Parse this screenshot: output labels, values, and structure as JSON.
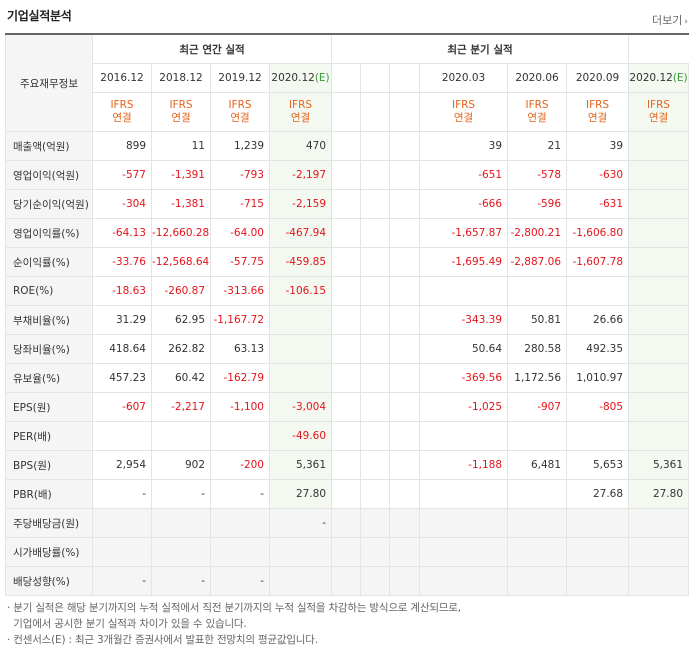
{
  "title": "기업실적분석",
  "more": "더보기",
  "header": {
    "corner": "주요재무정보",
    "annual_title": "최근 연간 실적",
    "quarter_title": "최근 분기 실적",
    "annual_periods": [
      "2016.12",
      "2018.12",
      "2019.12",
      "2020.12"
    ],
    "quarter_periods": [
      "2020.03",
      "2020.06",
      "2020.09",
      "2020.12"
    ],
    "estimate_mark": "(E)",
    "ifrs_top": "IFRS",
    "ifrs_bottom": "연결"
  },
  "rows": [
    {
      "label": "매출액(억원)",
      "a": [
        "899",
        "11",
        "1,239",
        "470"
      ],
      "q": [
        "39",
        "21",
        "39",
        ""
      ]
    },
    {
      "label": "영업이익(억원)",
      "a": [
        "-577",
        "-1,391",
        "-793",
        "-2,197"
      ],
      "q": [
        "-651",
        "-578",
        "-630",
        ""
      ]
    },
    {
      "label": "당기순이익(억원)",
      "a": [
        "-304",
        "-1,381",
        "-715",
        "-2,159"
      ],
      "q": [
        "-666",
        "-596",
        "-631",
        ""
      ]
    },
    {
      "label": "영업이익률(%)",
      "a": [
        "-64.13",
        "-12,660.28",
        "-64.00",
        "-467.94"
      ],
      "q": [
        "-1,657.87",
        "-2,800.21",
        "-1,606.80",
        ""
      ]
    },
    {
      "label": "순이익률(%)",
      "a": [
        "-33.76",
        "-12,568.64",
        "-57.75",
        "-459.85"
      ],
      "q": [
        "-1,695.49",
        "-2,887.06",
        "-1,607.78",
        ""
      ]
    },
    {
      "label": "ROE(%)",
      "a": [
        "-18.63",
        "-260.87",
        "-313.66",
        "-106.15"
      ],
      "q": [
        "",
        "",
        "",
        ""
      ]
    },
    {
      "label": "부채비율(%)",
      "a": [
        "31.29",
        "62.95",
        "-1,167.72",
        ""
      ],
      "q": [
        "-343.39",
        "50.81",
        "26.66",
        ""
      ]
    },
    {
      "label": "당좌비율(%)",
      "a": [
        "418.64",
        "262.82",
        "63.13",
        ""
      ],
      "q": [
        "50.64",
        "280.58",
        "492.35",
        ""
      ]
    },
    {
      "label": "유보율(%)",
      "a": [
        "457.23",
        "60.42",
        "-162.79",
        ""
      ],
      "q": [
        "-369.56",
        "1,172.56",
        "1,010.97",
        ""
      ]
    },
    {
      "label": "EPS(원)",
      "a": [
        "-607",
        "-2,217",
        "-1,100",
        "-3,004"
      ],
      "q": [
        "-1,025",
        "-907",
        "-805",
        ""
      ]
    },
    {
      "label": "PER(배)",
      "a": [
        "",
        "",
        "",
        "-49.60"
      ],
      "q": [
        "",
        "",
        "",
        ""
      ]
    },
    {
      "label": "BPS(원)",
      "a": [
        "2,954",
        "902",
        "-200",
        "5,361"
      ],
      "q": [
        "-1,188",
        "6,481",
        "5,653",
        "5,361"
      ]
    },
    {
      "label": "PBR(배)",
      "a": [
        "-",
        "-",
        "-",
        "27.80"
      ],
      "q": [
        "",
        "",
        "27.68",
        "27.80"
      ]
    },
    {
      "label": "주당배당금(원)",
      "a": [
        "",
        "",
        "",
        "-"
      ],
      "q": [
        "",
        "",
        "",
        ""
      ]
    },
    {
      "label": "시가배당률(%)",
      "a": [
        "",
        "",
        "",
        ""
      ],
      "q": [
        "",
        "",
        "",
        ""
      ]
    },
    {
      "label": "배당성향(%)",
      "a": [
        "-",
        "-",
        "-",
        ""
      ],
      "q": [
        "",
        "",
        "",
        ""
      ]
    }
  ],
  "notes": [
    "· 분기 실적은 해당 분기까지의 누적 실적에서 직전 분기까지의 누적 실적을 차감하는 방식으로 계산되므로,",
    "  기업에서 공시한 분기 실적과 차이가 있을 수 있습니다.",
    "· 컨센서스(E) : 최근 3개월간 증권사에서 발표한 전망치의 평균값입니다."
  ],
  "colors": {
    "negative": "#e4141a",
    "ifrs": "#e4641a",
    "estimate_bg": "#f3f9f0",
    "estimate_mark": "#3a9a3a"
  }
}
